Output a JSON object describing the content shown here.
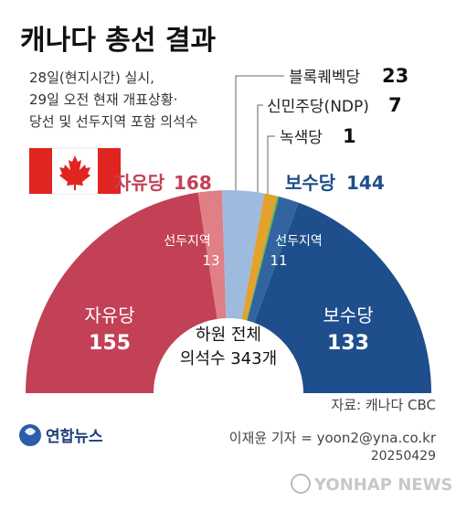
{
  "title": "캐나다 총선 결과",
  "subtitle_lines": [
    "28일(현지시간) 실시,",
    "29일 오전 현재 개표상황·",
    "당선 및 선두지역 포함 의석수"
  ],
  "colors": {
    "liberal": "#c24156",
    "liberal_leading": "#e07f86",
    "conservative": "#1f4e8c",
    "conservative_leading": "#32659f",
    "bloc": "#9fbadf",
    "ndp": "#e3a22c",
    "green": "#58b258",
    "flag_red": "#e0241f"
  },
  "chart_data": {
    "type": "semicircle-parliament",
    "total_label": "하원 전체",
    "total_seats_label": "의석수 343개",
    "total": 343,
    "series": [
      {
        "name": "자유당",
        "value": 155,
        "color_key": "liberal",
        "label_value": "155"
      },
      {
        "name": "선두지역",
        "value": 13,
        "color_key": "liberal_leading",
        "label_value": "13"
      },
      {
        "name": "블록퀘벡당",
        "value": 23,
        "color_key": "bloc",
        "label_value": "23"
      },
      {
        "name": "신민주당(NDP)",
        "value": 7,
        "color_key": "ndp",
        "label_value": "7"
      },
      {
        "name": "녹색당",
        "value": 1,
        "color_key": "green",
        "label_value": "1"
      },
      {
        "name": "선두지역",
        "value": 11,
        "color_key": "conservative_leading",
        "label_value": "11"
      },
      {
        "name": "보수당",
        "value": 133,
        "color_key": "conservative",
        "label_value": "133"
      }
    ],
    "party_totals": [
      {
        "name": "자유당",
        "value": "168"
      },
      {
        "name": "보수당",
        "value": "144"
      }
    ],
    "callouts": [
      {
        "name": "블록퀘벡당",
        "value": "23"
      },
      {
        "name": "신민주당(NDP)",
        "value": "7"
      },
      {
        "name": "녹색당",
        "value": "1"
      }
    ]
  },
  "source": "자료: 캐나다 CBC",
  "credit": "이재윤 기자 = yoon2@yna.co.kr",
  "date": "20250429",
  "logo_text": "연합뉴스",
  "watermark": "YONHAP NEWS"
}
